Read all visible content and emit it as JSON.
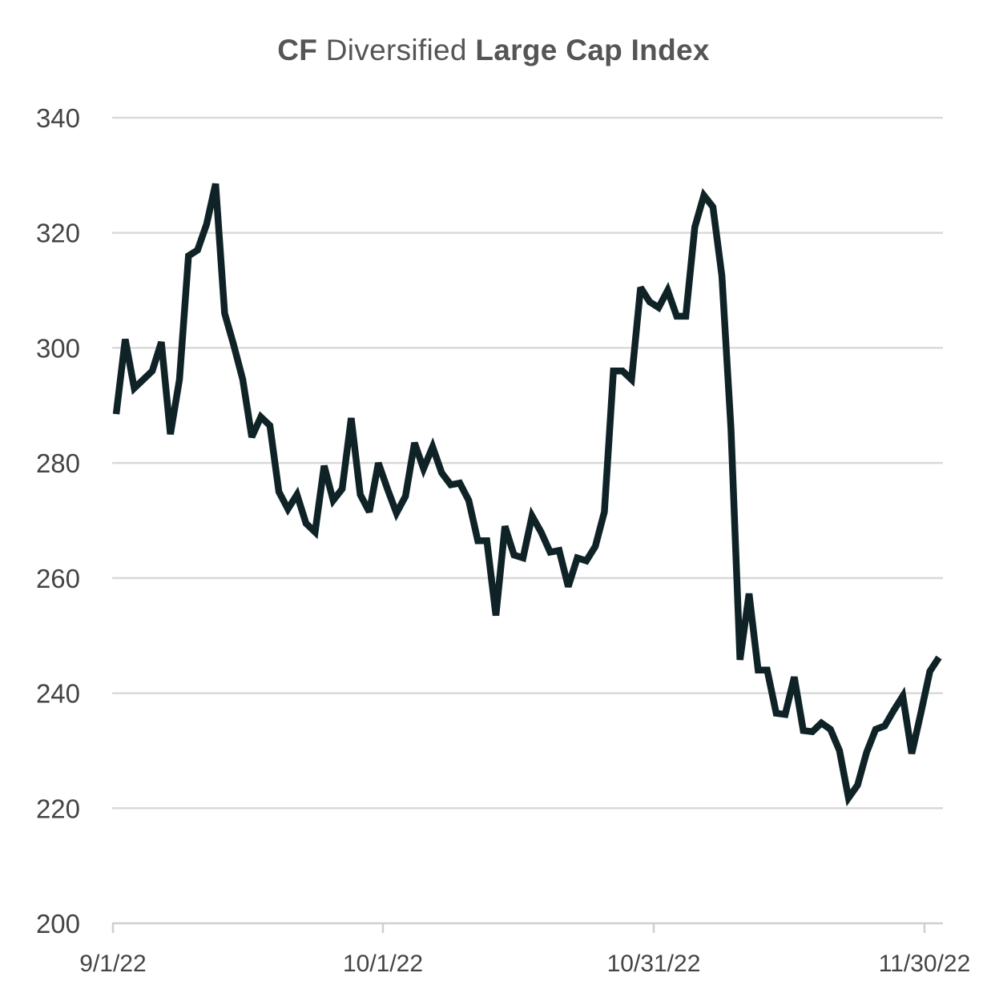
{
  "chart_data": {
    "type": "line",
    "title_parts": [
      {
        "text": "CF",
        "bold": true
      },
      {
        "text": " Diversified ",
        "bold": false
      },
      {
        "text": "Large Cap Index",
        "bold": true
      }
    ],
    "xlabel": "",
    "ylabel": "",
    "ylim": [
      200,
      340
    ],
    "y_ticks": [
      200,
      220,
      240,
      260,
      280,
      300,
      320,
      340
    ],
    "x_ticks": [
      "9/1/22",
      "10/1/22",
      "10/31/22",
      "11/30/22"
    ],
    "xlim": [
      "2022-09-01",
      "2022-12-01"
    ],
    "grid": true,
    "line_color": "#0f2326",
    "series": [
      {
        "values": [
          [
            "2022-09-01",
            288.5
          ],
          [
            "2022-09-02",
            301.5
          ],
          [
            "2022-09-03",
            293.0
          ],
          [
            "2022-09-04",
            294.5
          ],
          [
            "2022-09-05",
            296.0
          ],
          [
            "2022-09-06",
            301.0
          ],
          [
            "2022-09-07",
            285.0
          ],
          [
            "2022-09-08",
            294.5
          ],
          [
            "2022-09-09",
            316.0
          ],
          [
            "2022-09-10",
            317.0
          ],
          [
            "2022-09-11",
            321.5
          ],
          [
            "2022-09-12",
            328.5
          ],
          [
            "2022-09-13",
            306.0
          ],
          [
            "2022-09-14",
            300.5
          ],
          [
            "2022-09-15",
            294.5
          ],
          [
            "2022-09-16",
            284.5
          ],
          [
            "2022-09-17",
            288.0
          ],
          [
            "2022-09-18",
            286.5
          ],
          [
            "2022-09-19",
            275.0
          ],
          [
            "2022-09-20",
            272.0
          ],
          [
            "2022-09-21",
            274.5
          ],
          [
            "2022-09-22",
            269.5
          ],
          [
            "2022-09-23",
            268.0
          ],
          [
            "2022-09-24",
            279.5
          ],
          [
            "2022-09-25",
            273.5
          ],
          [
            "2022-09-26",
            275.5
          ],
          [
            "2022-09-27",
            287.8
          ],
          [
            "2022-09-28",
            274.5
          ],
          [
            "2022-09-29",
            271.5
          ],
          [
            "2022-09-30",
            280.0
          ],
          [
            "2022-10-01",
            275.5
          ],
          [
            "2022-10-02",
            271.3
          ],
          [
            "2022-10-03",
            274.2
          ],
          [
            "2022-10-04",
            283.5
          ],
          [
            "2022-10-05",
            279.0
          ],
          [
            "2022-10-06",
            282.8
          ],
          [
            "2022-10-07",
            278.3
          ],
          [
            "2022-10-08",
            276.2
          ],
          [
            "2022-10-09",
            276.5
          ],
          [
            "2022-10-10",
            273.5
          ],
          [
            "2022-10-11",
            266.5
          ],
          [
            "2022-10-12",
            266.5
          ],
          [
            "2022-10-13",
            253.5
          ],
          [
            "2022-10-14",
            269.0
          ],
          [
            "2022-10-15",
            264.0
          ],
          [
            "2022-10-16",
            263.5
          ],
          [
            "2022-10-17",
            270.8
          ],
          [
            "2022-10-18",
            268.0
          ],
          [
            "2022-10-19",
            264.5
          ],
          [
            "2022-10-20",
            264.8
          ],
          [
            "2022-10-21",
            258.5
          ],
          [
            "2022-10-22",
            263.5
          ],
          [
            "2022-10-23",
            263.0
          ],
          [
            "2022-10-24",
            265.5
          ],
          [
            "2022-10-25",
            271.5
          ],
          [
            "2022-10-26",
            296.0
          ],
          [
            "2022-10-27",
            296.0
          ],
          [
            "2022-10-28",
            294.5
          ],
          [
            "2022-10-29",
            310.5
          ],
          [
            "2022-10-30",
            308.0
          ],
          [
            "2022-10-31",
            307.0
          ],
          [
            "2022-11-01",
            310.0
          ],
          [
            "2022-11-02",
            305.5
          ],
          [
            "2022-11-03",
            305.5
          ],
          [
            "2022-11-04",
            321.0
          ],
          [
            "2022-11-05",
            326.5
          ],
          [
            "2022-11-06",
            324.5
          ],
          [
            "2022-11-07",
            312.5
          ],
          [
            "2022-11-08",
            286.0
          ],
          [
            "2022-11-09",
            245.8
          ],
          [
            "2022-11-10",
            257.3
          ],
          [
            "2022-11-11",
            244.0
          ],
          [
            "2022-11-12",
            244.0
          ],
          [
            "2022-11-13",
            236.5
          ],
          [
            "2022-11-14",
            236.3
          ],
          [
            "2022-11-15",
            242.8
          ],
          [
            "2022-11-16",
            233.5
          ],
          [
            "2022-11-17",
            233.3
          ],
          [
            "2022-11-18",
            234.8
          ],
          [
            "2022-11-19",
            233.7
          ],
          [
            "2022-11-20",
            230.0
          ],
          [
            "2022-11-21",
            221.8
          ],
          [
            "2022-11-22",
            224.0
          ],
          [
            "2022-11-23",
            229.7
          ],
          [
            "2022-11-24",
            233.7
          ],
          [
            "2022-11-25",
            234.3
          ],
          [
            "2022-11-26",
            237.0
          ],
          [
            "2022-11-27",
            239.5
          ],
          [
            "2022-11-28",
            229.5
          ],
          [
            "2022-11-29",
            236.5
          ],
          [
            "2022-11-30",
            243.8
          ],
          [
            "2022-12-01",
            246.2
          ]
        ]
      }
    ]
  }
}
